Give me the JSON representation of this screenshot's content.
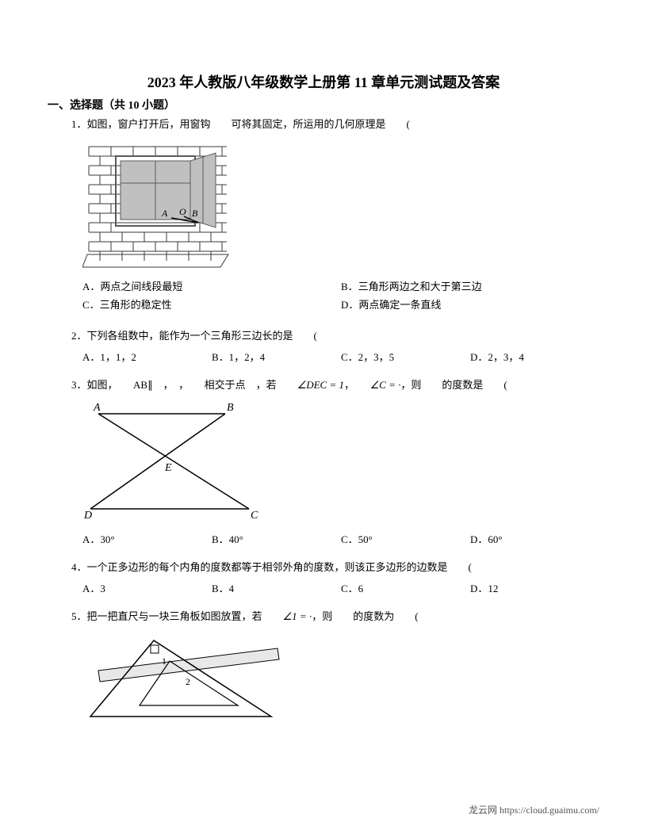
{
  "title": "2023 年人教版八年级数学上册第 11 章单元测试题及答案",
  "section_header": "一、选择题（共 10 小题）",
  "q1": {
    "num": "1．",
    "text": "如图，窗户打开后，用窗钩　　可将其固定，所运用的几何原理是　　(",
    "diagram": {
      "labels": {
        "A": "A",
        "O": "O",
        "B": "B"
      },
      "brick_stroke": "#3a3a3a",
      "window_fill": "#c0c0c0",
      "window_frame": "#5a5a5a"
    },
    "optA": "A．两点之间线段最短",
    "optB": "B．三角形两边之和大于第三边",
    "optC": "C．三角形的稳定性",
    "optD": "D．两点确定一条直线"
  },
  "q2": {
    "num": "2．",
    "text": "下列各组数中，能作为一个三角形三边长的是　　(",
    "optA": "A．1，1，2",
    "optB": "B．1，2，4",
    "optC": "C．2，3，5",
    "optD": "D．2，3，4"
  },
  "q3": {
    "num": "3．",
    "text_pre": "如图，　　AB∥　，　，　　相交于点　，若　　",
    "math1": "∠DEC = 1",
    "text_mid": "，　　",
    "math2": "∠C = ·",
    "text_post": "，则　　的度数是　　(",
    "diagram": {
      "A": "A",
      "B": "B",
      "C": "C",
      "D": "D",
      "E": "E",
      "stroke": "#000000"
    },
    "optA": "A．30°",
    "optB": "B．40°",
    "optC": "C．50°",
    "optD": "D．60°"
  },
  "q4": {
    "num": "4．",
    "text": "一个正多边形的每个内角的度数都等于相邻外角的度数，则该正多边形的边数是　　(",
    "optA": "A．3",
    "optB": "B．4",
    "optC": "C．6",
    "optD": "D．12"
  },
  "q5": {
    "num": "5．",
    "text_pre": "把一把直尺与一块三角板如图放置，若　　",
    "math1": "∠1 = ·",
    "text_post": "，则　　的度数为　　(",
    "diagram": {
      "label1": "1",
      "label2": "2",
      "stroke": "#000000",
      "ruler_fill": "#e8e8e8"
    }
  },
  "footer": "龙云网 https://cloud.guaimu.com/"
}
